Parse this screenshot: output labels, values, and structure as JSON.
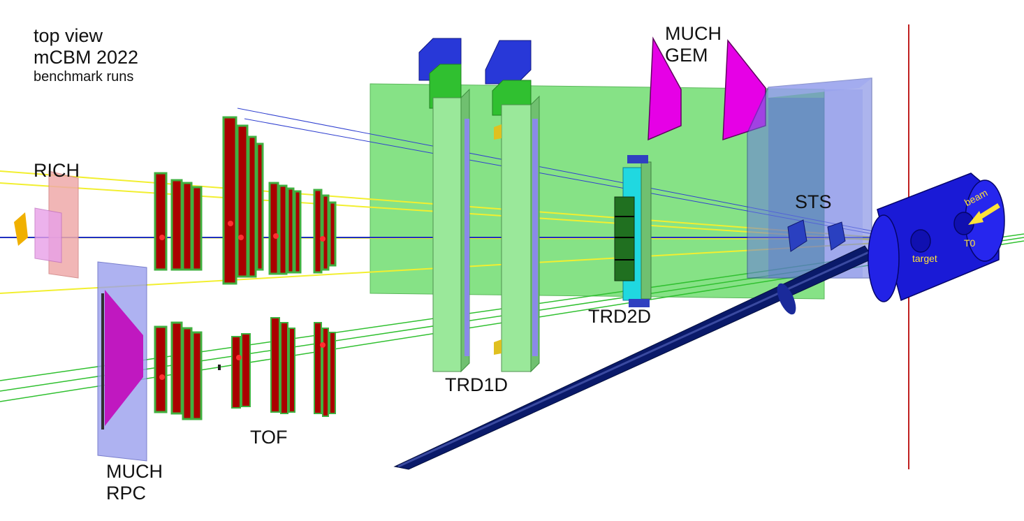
{
  "title_block": {
    "line1": "top view",
    "line2": "mCBM 2022",
    "line3": "benchmark runs"
  },
  "labels": {
    "rich": "RICH",
    "much_gem_1": "MUCH",
    "much_gem_2": "GEM",
    "sts": "STS",
    "trd1d": "TRD1D",
    "trd2d": "TRD2D",
    "tof": "TOF",
    "much_rpc_1": "MUCH",
    "much_rpc_2": "RPC",
    "beam": "beam",
    "target": "target",
    "t0": "T0"
  },
  "colors": {
    "trd_green": "#90e890",
    "tof_red": "#aa0000",
    "much_magenta": "#e600e6",
    "sts_box_blue": "#7f8fe8",
    "beampipe_navy": "#0a1a6a",
    "target_blue": "#1a1ad6",
    "track_yellow": "#f2ef30",
    "track_blue": "#3040d0",
    "track_green": "#30c030",
    "marker_red": "#c02020"
  }
}
